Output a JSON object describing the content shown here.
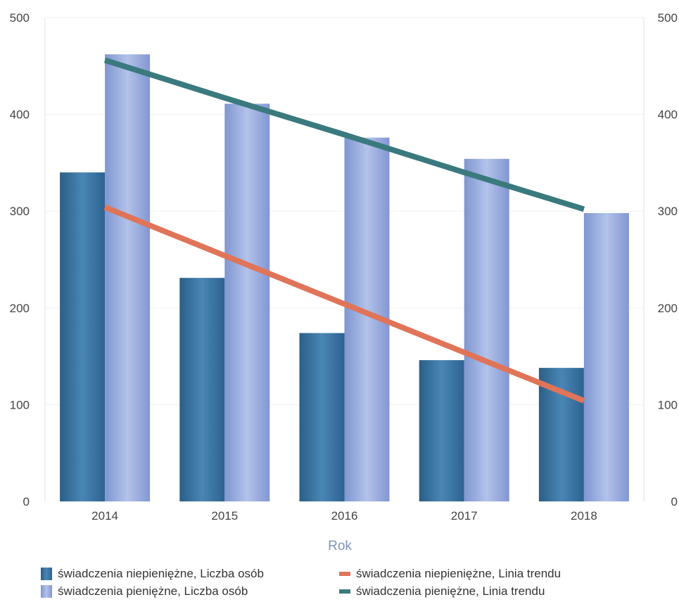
{
  "chart_data": {
    "type": "bar",
    "categories": [
      "2014",
      "2015",
      "2016",
      "2017",
      "2018"
    ],
    "xlabel": "Rok",
    "ylim": [
      0,
      500
    ],
    "y_ticks": [
      "0",
      "100",
      "200",
      "300",
      "400",
      "500"
    ],
    "y2lim": [
      0,
      500
    ],
    "y2_ticks": [
      "0",
      "100",
      "200",
      "300",
      "400",
      "500"
    ],
    "grid": true,
    "legend_position": "bottom",
    "series": [
      {
        "name": "świadczenia niepieniężne, Liczba osób",
        "type": "bar",
        "values": [
          340,
          231,
          174,
          146,
          138
        ],
        "color": "#336f9c"
      },
      {
        "name": "świadczenia pieniężne, Liczba osób",
        "type": "bar",
        "values": [
          462,
          411,
          376,
          354,
          298
        ],
        "color": "#8aa1d7"
      }
    ],
    "trend_lines": [
      {
        "name": "świadczenia niepieniężne, Linia trendu",
        "values": [
          304,
          254,
          204,
          154,
          104
        ],
        "color": "#e07459"
      },
      {
        "name": "świadczenia pieniężne, Linia trendu",
        "values": [
          456,
          417,
          379,
          340,
          302
        ],
        "color": "#3a7a7e"
      }
    ]
  }
}
